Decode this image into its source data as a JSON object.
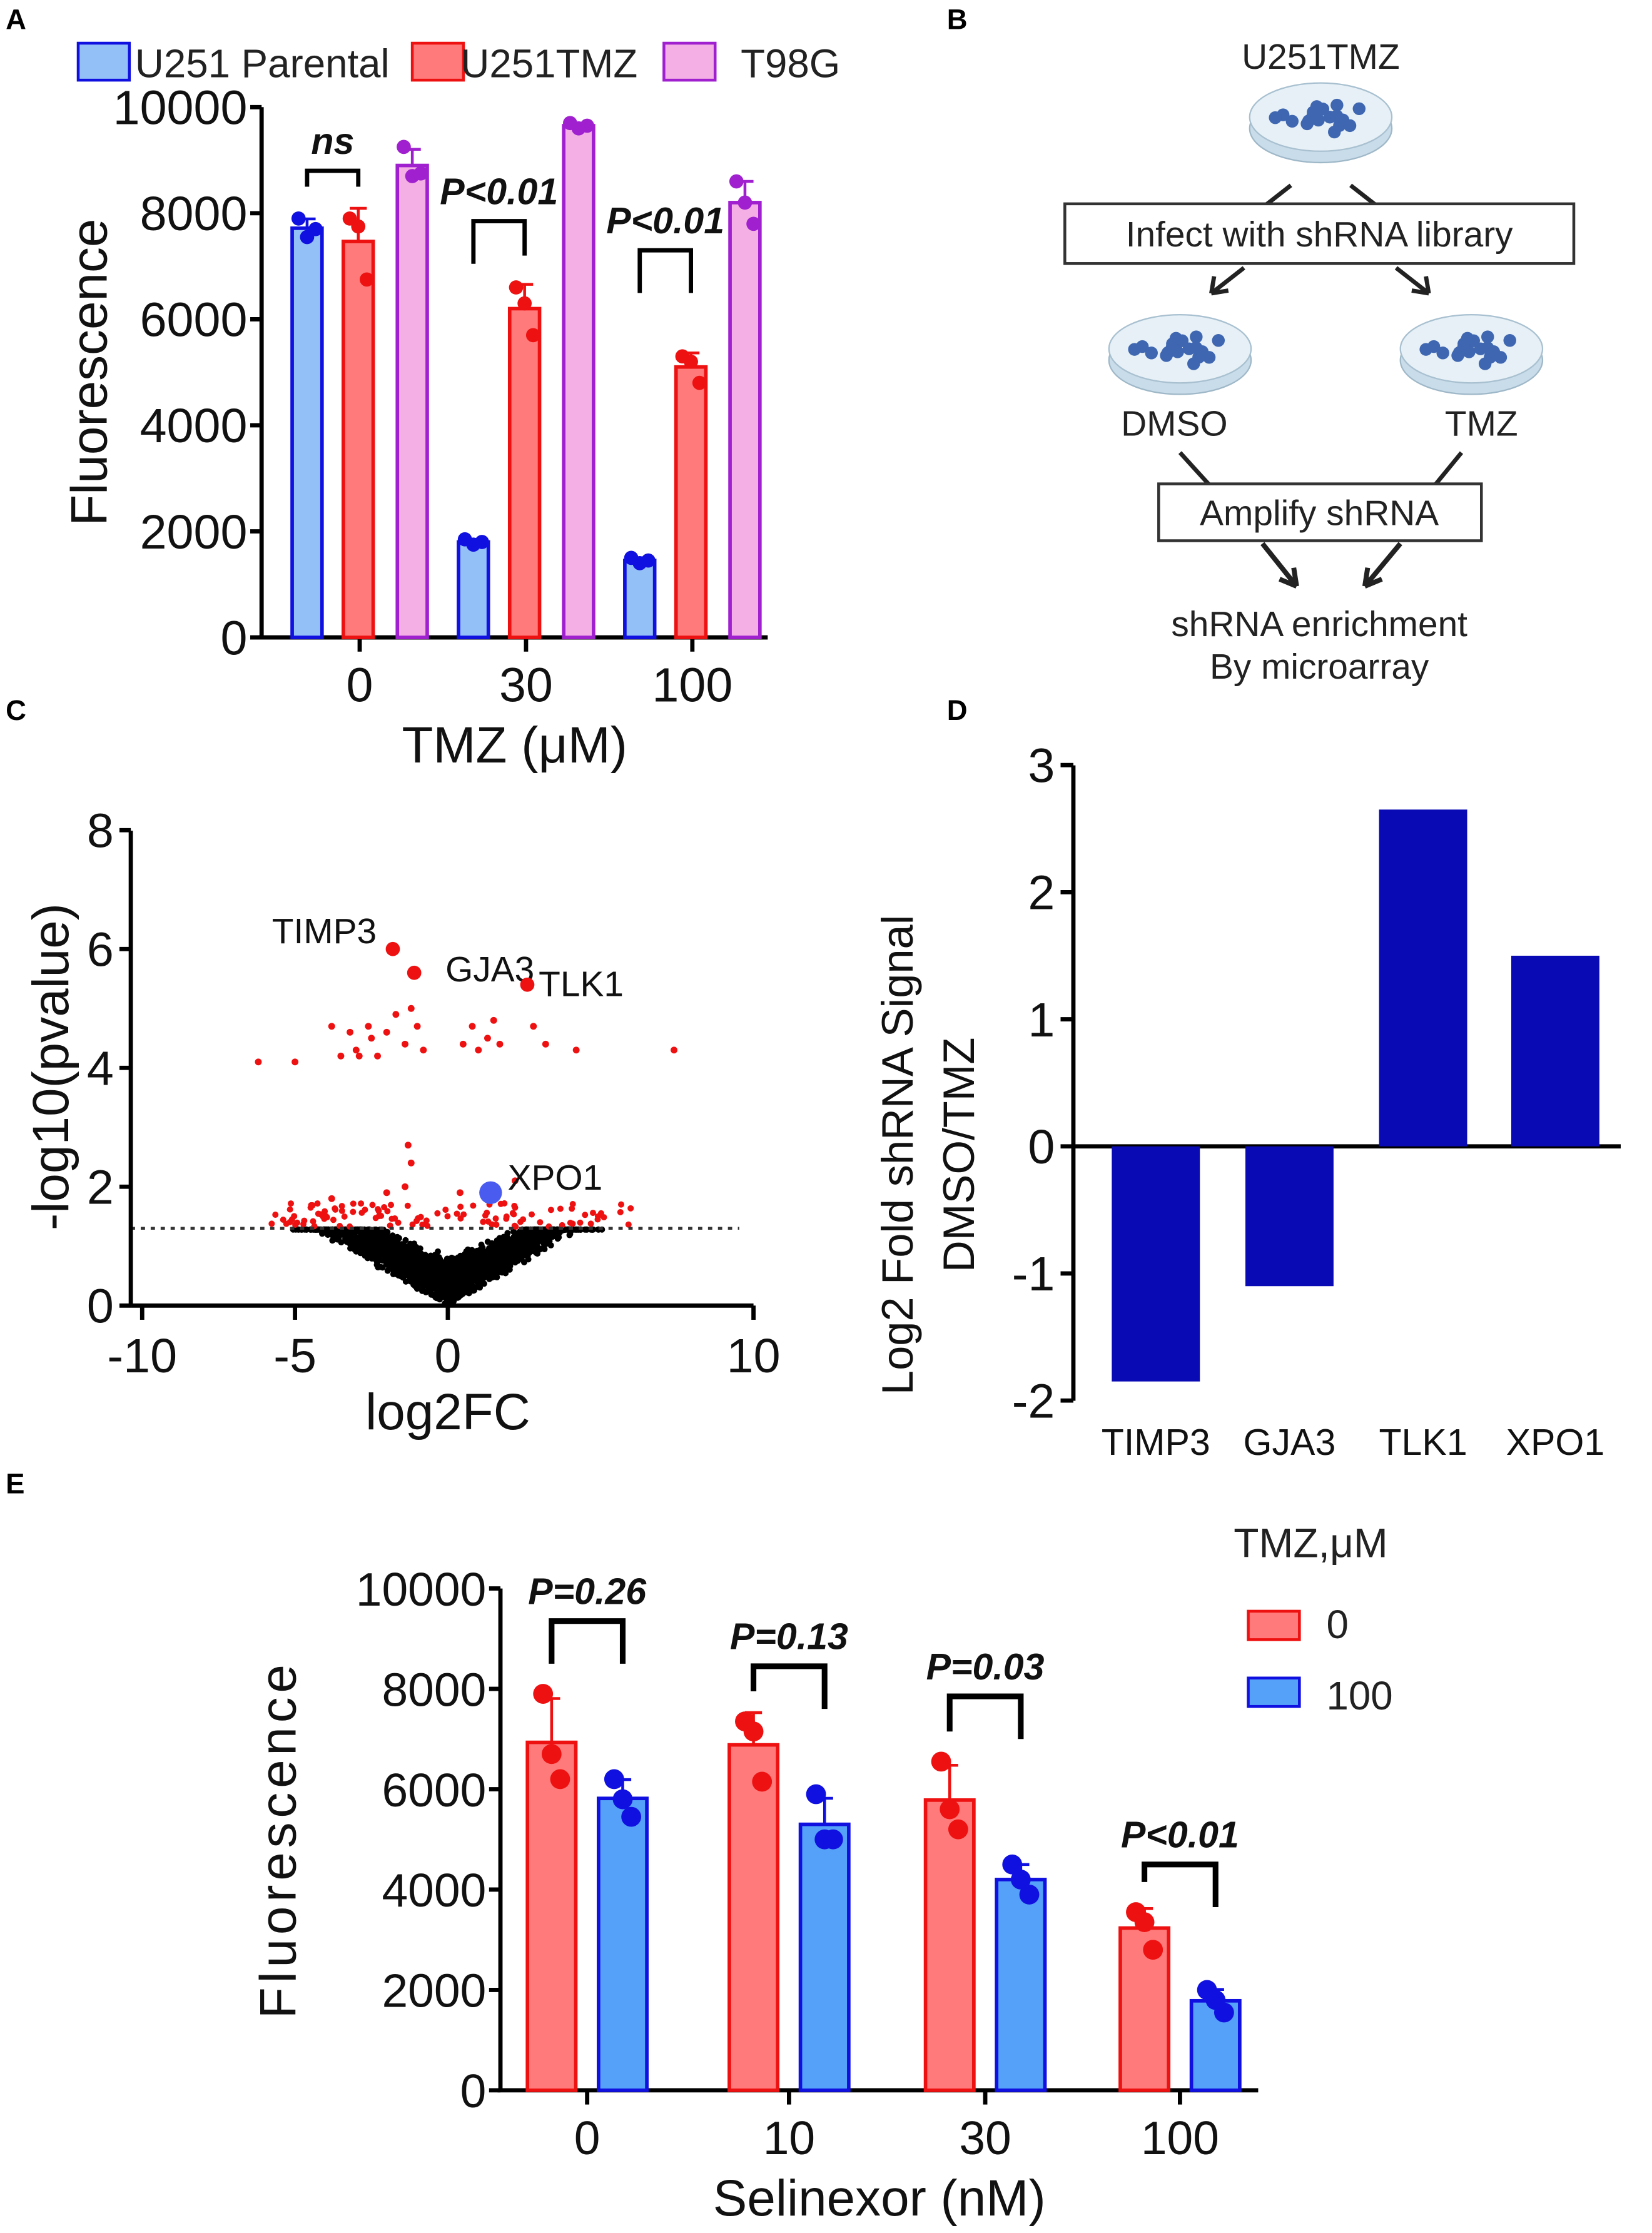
{
  "panels": {
    "a": "A",
    "b": "B",
    "c": "C",
    "d": "D",
    "e": "E"
  },
  "colors": {
    "blue": "#94c0f8",
    "blue_edge": "#1010e0",
    "red": "#ff7b7b",
    "red_edge": "#ee1111",
    "pink": "#f4b0e4",
    "pink_edge": "#a020d0",
    "navy": "#0a0ab4",
    "e_blue": "#55a0f8"
  },
  "chart_data": [
    {
      "id": "A",
      "type": "bar",
      "ylabel": "Fluorescence",
      "xlabel": "TMZ (μM)",
      "ylim": [
        0,
        10000
      ],
      "yticks": [
        "0",
        "2000",
        "4000",
        "6000",
        "8000",
        "10000"
      ],
      "categories": [
        "0",
        "30",
        "100"
      ],
      "legend": [
        "U251 Parental",
        "U251TMZ",
        "T98G"
      ],
      "legend_position": "top",
      "series": [
        {
          "name": "U251 Parental",
          "replicates": [
            [
              7900,
              7550,
              7700
            ],
            [
              1850,
              1750,
              1800
            ],
            [
              1500,
              1400,
              1450
            ]
          ]
        },
        {
          "name": "U251TMZ",
          "replicates": [
            [
              7900,
              7750,
              6750
            ],
            [
              6600,
              6300,
              5700
            ],
            [
              5300,
              5200,
              4800
            ]
          ]
        },
        {
          "name": "T98G",
          "replicates": [
            [
              9250,
              8700,
              8750
            ],
            [
              9700,
              9600,
              9650
            ],
            [
              8600,
              8200,
              7800
            ]
          ]
        }
      ],
      "annotations": [
        {
          "text": "ns",
          "category": 0,
          "from_series": 0,
          "to_series": 1,
          "level": 8800
        },
        {
          "text": "P<0.01",
          "category": 1,
          "from_series": 0,
          "to_series": 1,
          "level": 7850
        },
        {
          "text": "P<0.01",
          "category": 2,
          "from_series": 0,
          "to_series": 1,
          "level": 7300
        }
      ]
    },
    {
      "id": "C",
      "type": "scatter",
      "xlabel": "log2FC",
      "ylabel": "-log10(pvalue)",
      "xlim": [
        -10,
        10
      ],
      "ylim": [
        0,
        8
      ],
      "xticks": [
        "-10",
        "-5",
        "0",
        "10"
      ],
      "yticks": [
        "0",
        "2",
        "4",
        "6",
        "8"
      ],
      "threshold": 1.3,
      "labeled_points": [
        {
          "label": "TIMP3",
          "x": -1.8,
          "y": 6.0,
          "color": "red"
        },
        {
          "label": "GJA3",
          "x": -1.1,
          "y": 5.6,
          "color": "red"
        },
        {
          "label": "TLK1",
          "x": 2.6,
          "y": 5.4,
          "color": "red"
        },
        {
          "label": "XPO1",
          "x": 1.4,
          "y": 1.9,
          "color": "blue"
        }
      ],
      "significant_points": [
        [
          -6.2,
          4.1
        ],
        [
          -5.0,
          4.1
        ],
        [
          -3.8,
          4.7
        ],
        [
          -3.5,
          4.2
        ],
        [
          -3.2,
          4.6
        ],
        [
          -2.9,
          4.2
        ],
        [
          -2.6,
          4.7
        ],
        [
          -2.3,
          4.2
        ],
        [
          -2.0,
          4.6
        ],
        [
          -1.7,
          4.9
        ],
        [
          -1.4,
          4.4
        ],
        [
          -1.2,
          5.0
        ],
        [
          -1.0,
          4.7
        ],
        [
          -0.8,
          4.3
        ],
        [
          -3.0,
          4.3
        ],
        [
          -2.5,
          4.5
        ],
        [
          0.5,
          4.4
        ],
        [
          0.8,
          4.7
        ],
        [
          1.0,
          4.3
        ],
        [
          1.3,
          4.5
        ],
        [
          1.5,
          4.8
        ],
        [
          1.7,
          4.4
        ],
        [
          2.8,
          4.7
        ],
        [
          3.2,
          4.4
        ],
        [
          4.2,
          4.3
        ],
        [
          7.4,
          4.3
        ],
        [
          -1.3,
          2.7
        ],
        [
          -1.2,
          2.4
        ],
        [
          -2.0,
          1.9
        ],
        [
          -3.8,
          1.8
        ],
        [
          0.4,
          1.9
        ],
        [
          2.2,
          2.1
        ],
        [
          -1.4,
          2.0
        ]
      ]
    },
    {
      "id": "D",
      "type": "bar",
      "ylabel": "Log2 Fold shRNA Signal",
      "ylabel2": "DMSO/TMZ",
      "ylim": [
        -2,
        3
      ],
      "yticks": [
        "-2",
        "-1",
        "0",
        "1",
        "2",
        "3"
      ],
      "categories": [
        "TIMP3",
        "GJA3",
        "TLK1",
        "XPO1"
      ],
      "values": [
        -1.85,
        -1.1,
        2.65,
        1.5
      ]
    },
    {
      "id": "E",
      "type": "bar",
      "ylabel": "Fluorescence",
      "xlabel": "Selinexor (nM)",
      "ylim": [
        0,
        10000
      ],
      "yticks": [
        "0",
        "2000",
        "4000",
        "6000",
        "8000",
        "10000"
      ],
      "categories": [
        "0",
        "10",
        "30",
        "100"
      ],
      "legend_title": "TMZ,μM",
      "legend": [
        "0",
        "100"
      ],
      "legend_position": "top-right",
      "series": [
        {
          "name": "0",
          "replicates": [
            [
              7900,
              6700,
              6200
            ],
            [
              7350,
              7150,
              6150
            ],
            [
              6550,
              5600,
              5200
            ],
            [
              3550,
              3350,
              2800
            ]
          ]
        },
        {
          "name": "100",
          "replicates": [
            [
              6200,
              5800,
              5450
            ],
            [
              5900,
              5000,
              5000
            ],
            [
              4500,
              4200,
              3900
            ],
            [
              2000,
              1800,
              1550
            ]
          ]
        }
      ],
      "annotations": [
        {
          "text": "P=0.26",
          "category": 0,
          "level": 9350
        },
        {
          "text": "P=0.13",
          "category": 1,
          "level": 8450
        },
        {
          "text": "P=0.03",
          "category": 2,
          "level": 7850
        },
        {
          "text": "P<0.01",
          "category": 3,
          "level": 4500
        }
      ]
    }
  ],
  "diagram": {
    "top_cell": "U251TMZ",
    "step1": "Infect with shRNA library",
    "left_arm": "DMSO",
    "right_arm": "TMZ",
    "step2": "Amplify shRNA",
    "result_line1": "shRNA enrichment",
    "result_line2": "By microarray"
  }
}
